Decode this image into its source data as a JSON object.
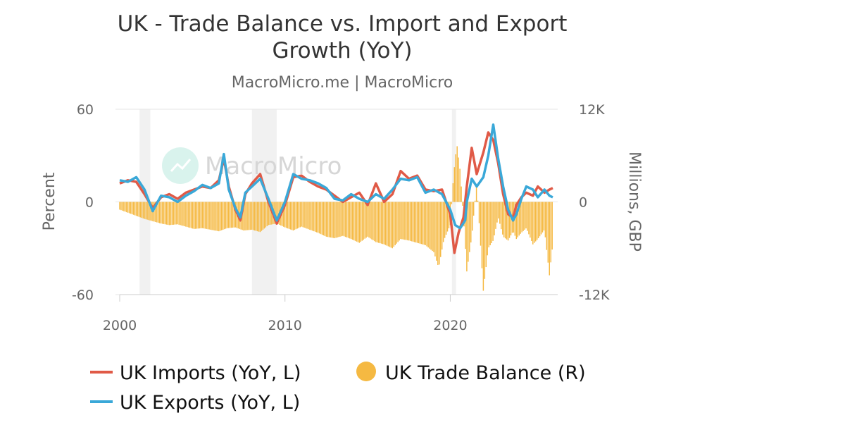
{
  "chart_data": {
    "type": "line",
    "title_lines": [
      "UK - Trade Balance vs. Import and Export",
      "Growth (YoY)"
    ],
    "subtitle": "MacroMicro.me | MacroMicro",
    "watermark": "MacroMicro",
    "y_left": {
      "label": "Percent",
      "range": [
        -60,
        60
      ],
      "ticks": [
        60,
        0,
        -60
      ],
      "tick_labels": [
        "60",
        "0",
        "-60"
      ]
    },
    "y_right": {
      "label": "Millions, GBP",
      "range": [
        -12000,
        12000
      ],
      "ticks": [
        12000,
        0,
        -12000
      ],
      "tick_labels": [
        "12K",
        "0",
        "-12K"
      ]
    },
    "x_axis": {
      "range": [
        2000,
        2026.5
      ],
      "ticks": [
        2000,
        2010,
        2020
      ],
      "tick_labels": [
        "2000",
        "2010",
        "2020"
      ]
    },
    "recessions": [
      [
        2001.2,
        2001.85
      ],
      [
        2008.0,
        2009.5
      ],
      [
        2020.1,
        2020.35
      ]
    ],
    "legend": [
      {
        "name": "UK Imports (YoY, L)",
        "symbol": "line",
        "color": "#e05a47"
      },
      {
        "name": "UK Trade Balance (R)",
        "symbol": "circle",
        "color": "#f5b942"
      },
      {
        "name": "UK Exports (YoY, L)",
        "symbol": "line",
        "color": "#3aa8d8"
      }
    ],
    "series": [
      {
        "name": "UK Imports (YoY, L)",
        "axis": "left",
        "type": "line",
        "color": "#e05a47",
        "points": [
          [
            2000,
            12
          ],
          [
            2000.5,
            14
          ],
          [
            2001,
            13
          ],
          [
            2001.5,
            5
          ],
          [
            2002,
            -4
          ],
          [
            2002.5,
            3
          ],
          [
            2003,
            5
          ],
          [
            2003.5,
            2
          ],
          [
            2004,
            6
          ],
          [
            2004.5,
            8
          ],
          [
            2005,
            10
          ],
          [
            2005.5,
            9
          ],
          [
            2006,
            14
          ],
          [
            2006.3,
            28
          ],
          [
            2006.6,
            10
          ],
          [
            2007,
            -5
          ],
          [
            2007.3,
            -12
          ],
          [
            2007.6,
            5
          ],
          [
            2008,
            12
          ],
          [
            2008.5,
            18
          ],
          [
            2009,
            0
          ],
          [
            2009.5,
            -14
          ],
          [
            2010,
            -2
          ],
          [
            2010.5,
            16
          ],
          [
            2011,
            17
          ],
          [
            2011.5,
            13
          ],
          [
            2012,
            10
          ],
          [
            2012.5,
            8
          ],
          [
            2013,
            4
          ],
          [
            2013.5,
            0
          ],
          [
            2014,
            3
          ],
          [
            2014.5,
            6
          ],
          [
            2015,
            -2
          ],
          [
            2015.5,
            12
          ],
          [
            2016,
            0
          ],
          [
            2016.5,
            5
          ],
          [
            2017,
            20
          ],
          [
            2017.5,
            15
          ],
          [
            2018,
            17
          ],
          [
            2018.5,
            8
          ],
          [
            2019,
            7
          ],
          [
            2019.5,
            8
          ],
          [
            2020,
            -8
          ],
          [
            2020.25,
            -33
          ],
          [
            2020.5,
            -20
          ],
          [
            2020.8,
            -10
          ],
          [
            2021,
            10
          ],
          [
            2021.3,
            35
          ],
          [
            2021.6,
            18
          ],
          [
            2022,
            32
          ],
          [
            2022.3,
            45
          ],
          [
            2022.6,
            40
          ],
          [
            2022.9,
            25
          ],
          [
            2023.2,
            5
          ],
          [
            2023.5,
            -8
          ],
          [
            2023.8,
            -10
          ],
          [
            2024,
            -2
          ],
          [
            2024.3,
            3
          ],
          [
            2024.6,
            6
          ],
          [
            2025,
            4
          ],
          [
            2025.3,
            10
          ],
          [
            2025.7,
            6
          ],
          [
            2026,
            8
          ],
          [
            2026.2,
            9
          ]
        ]
      },
      {
        "name": "UK Exports (YoY, L)",
        "axis": "left",
        "type": "line",
        "color": "#3aa8d8",
        "points": [
          [
            2000,
            14
          ],
          [
            2000.5,
            13
          ],
          [
            2001,
            16
          ],
          [
            2001.5,
            8
          ],
          [
            2002,
            -6
          ],
          [
            2002.5,
            4
          ],
          [
            2003,
            3
          ],
          [
            2003.5,
            0
          ],
          [
            2004,
            4
          ],
          [
            2004.5,
            7
          ],
          [
            2005,
            11
          ],
          [
            2005.5,
            9
          ],
          [
            2006,
            12
          ],
          [
            2006.3,
            31
          ],
          [
            2006.6,
            8
          ],
          [
            2007,
            -4
          ],
          [
            2007.3,
            -10
          ],
          [
            2007.6,
            6
          ],
          [
            2008,
            10
          ],
          [
            2008.5,
            15
          ],
          [
            2009,
            2
          ],
          [
            2009.5,
            -12
          ],
          [
            2010,
            0
          ],
          [
            2010.5,
            18
          ],
          [
            2011,
            15
          ],
          [
            2011.5,
            14
          ],
          [
            2012,
            12
          ],
          [
            2012.5,
            9
          ],
          [
            2013,
            2
          ],
          [
            2013.5,
            1
          ],
          [
            2014,
            5
          ],
          [
            2014.5,
            2
          ],
          [
            2015,
            0
          ],
          [
            2015.5,
            5
          ],
          [
            2016,
            2
          ],
          [
            2016.5,
            8
          ],
          [
            2017,
            15
          ],
          [
            2017.5,
            14
          ],
          [
            2018,
            16
          ],
          [
            2018.5,
            6
          ],
          [
            2019,
            8
          ],
          [
            2019.5,
            5
          ],
          [
            2020,
            -5
          ],
          [
            2020.3,
            -15
          ],
          [
            2020.6,
            -17
          ],
          [
            2020.9,
            -12
          ],
          [
            2021,
            0
          ],
          [
            2021.3,
            15
          ],
          [
            2021.6,
            10
          ],
          [
            2022,
            16
          ],
          [
            2022.3,
            30
          ],
          [
            2022.6,
            50
          ],
          [
            2022.9,
            28
          ],
          [
            2023.2,
            10
          ],
          [
            2023.5,
            -5
          ],
          [
            2023.8,
            -12
          ],
          [
            2024,
            -8
          ],
          [
            2024.3,
            2
          ],
          [
            2024.6,
            10
          ],
          [
            2025,
            8
          ],
          [
            2025.3,
            3
          ],
          [
            2025.7,
            8
          ],
          [
            2026,
            4
          ],
          [
            2026.2,
            3
          ]
        ]
      },
      {
        "name": "UK Trade Balance (R)",
        "axis": "right",
        "type": "bar",
        "color": "#f5b942",
        "points": [
          [
            2000,
            -1000
          ],
          [
            2000.5,
            -1400
          ],
          [
            2001,
            -1800
          ],
          [
            2001.5,
            -2200
          ],
          [
            2002,
            -2500
          ],
          [
            2002.5,
            -2800
          ],
          [
            2003,
            -3000
          ],
          [
            2003.5,
            -2900
          ],
          [
            2004,
            -3200
          ],
          [
            2004.5,
            -3500
          ],
          [
            2005,
            -3400
          ],
          [
            2005.5,
            -3600
          ],
          [
            2006,
            -3800
          ],
          [
            2006.5,
            -3400
          ],
          [
            2007,
            -3300
          ],
          [
            2007.5,
            -3700
          ],
          [
            2008,
            -3600
          ],
          [
            2008.5,
            -3900
          ],
          [
            2009,
            -3000
          ],
          [
            2009.5,
            -2800
          ],
          [
            2010,
            -3300
          ],
          [
            2010.5,
            -3700
          ],
          [
            2011,
            -3200
          ],
          [
            2011.5,
            -3600
          ],
          [
            2012,
            -4000
          ],
          [
            2012.5,
            -4500
          ],
          [
            2013,
            -4700
          ],
          [
            2013.5,
            -4400
          ],
          [
            2014,
            -4800
          ],
          [
            2014.5,
            -5300
          ],
          [
            2015,
            -4500
          ],
          [
            2015.5,
            -5200
          ],
          [
            2016,
            -5500
          ],
          [
            2016.5,
            -6000
          ],
          [
            2017,
            -4800
          ],
          [
            2017.5,
            -5000
          ],
          [
            2018,
            -5300
          ],
          [
            2018.5,
            -5600
          ],
          [
            2019,
            -6500
          ],
          [
            2019.3,
            -8500
          ],
          [
            2019.6,
            -5000
          ],
          [
            2020,
            -3000
          ],
          [
            2020.2,
            3500
          ],
          [
            2020.4,
            7500
          ],
          [
            2020.6,
            4000
          ],
          [
            2020.8,
            -2000
          ],
          [
            2021,
            -9000
          ],
          [
            2021.3,
            -4500
          ],
          [
            2021.6,
            2500
          ],
          [
            2022,
            -11500
          ],
          [
            2022.3,
            -6000
          ],
          [
            2022.6,
            -5000
          ],
          [
            2022.9,
            -2000
          ],
          [
            2023.2,
            -4500
          ],
          [
            2023.5,
            -5000
          ],
          [
            2023.8,
            -3800
          ],
          [
            2024,
            -4800
          ],
          [
            2024.3,
            -4000
          ],
          [
            2024.6,
            -3400
          ],
          [
            2025,
            -5500
          ],
          [
            2025.3,
            -4800
          ],
          [
            2025.7,
            -3600
          ],
          [
            2026,
            -9500
          ],
          [
            2026.2,
            -5500
          ]
        ]
      }
    ],
    "grid": "horizontal"
  }
}
